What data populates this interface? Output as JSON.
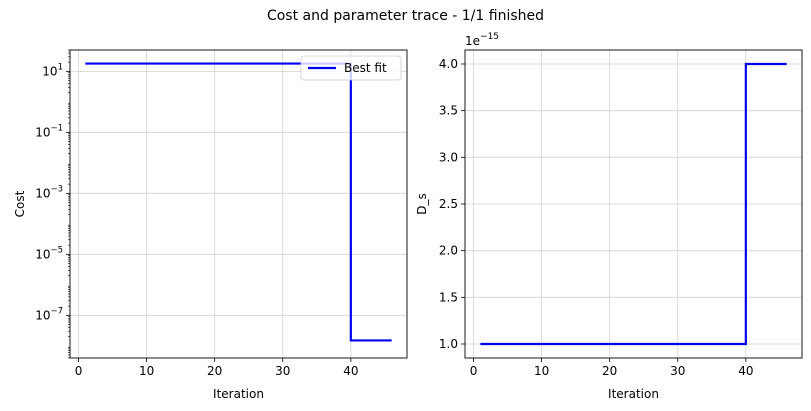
{
  "figure_title": "Cost and parameter trace - 1/1 finished",
  "colors": {
    "line": "#0000ee",
    "grid": "#d3d3d3",
    "axis": "#000000"
  },
  "chart_data": [
    {
      "type": "line",
      "xlabel": "Iteration",
      "ylabel": "Cost",
      "yscale": "log",
      "xlim": [
        -1.25,
        48.25
      ],
      "ylim_log10": [
        -8.4,
        1.7
      ],
      "xticks": [
        0,
        10,
        20,
        30,
        40
      ],
      "xtick_labels": [
        "0",
        "10",
        "20",
        "30",
        "40"
      ],
      "yticks_log10": [
        1,
        -1,
        -3,
        -5,
        -7
      ],
      "grid": true,
      "legend": {
        "position": "top-right",
        "entries": [
          "Best fit"
        ]
      },
      "series": [
        {
          "name": "Best fit",
          "step": "post",
          "x": [
            1,
            40,
            40,
            46
          ],
          "y": [
            18,
            18,
            1.5e-08,
            1.5e-08
          ]
        }
      ]
    },
    {
      "type": "line",
      "xlabel": "Iteration",
      "ylabel": "D_s",
      "offset_label_base": "1e",
      "offset_label_exp": "−15",
      "xlim": [
        -1.25,
        48.25
      ],
      "ylim": [
        0.85,
        4.15
      ],
      "xticks": [
        0,
        10,
        20,
        30,
        40
      ],
      "xtick_labels": [
        "0",
        "10",
        "20",
        "30",
        "40"
      ],
      "yticks": [
        1.0,
        1.5,
        2.0,
        2.5,
        3.0,
        3.5,
        4.0
      ],
      "ytick_labels": [
        "1.0",
        "1.5",
        "2.0",
        "2.5",
        "3.0",
        "3.5",
        "4.0"
      ],
      "grid": true,
      "series": [
        {
          "step": "post",
          "x": [
            1,
            40,
            40,
            46
          ],
          "y": [
            1.0,
            1.0,
            4.0,
            4.0
          ]
        }
      ]
    }
  ]
}
